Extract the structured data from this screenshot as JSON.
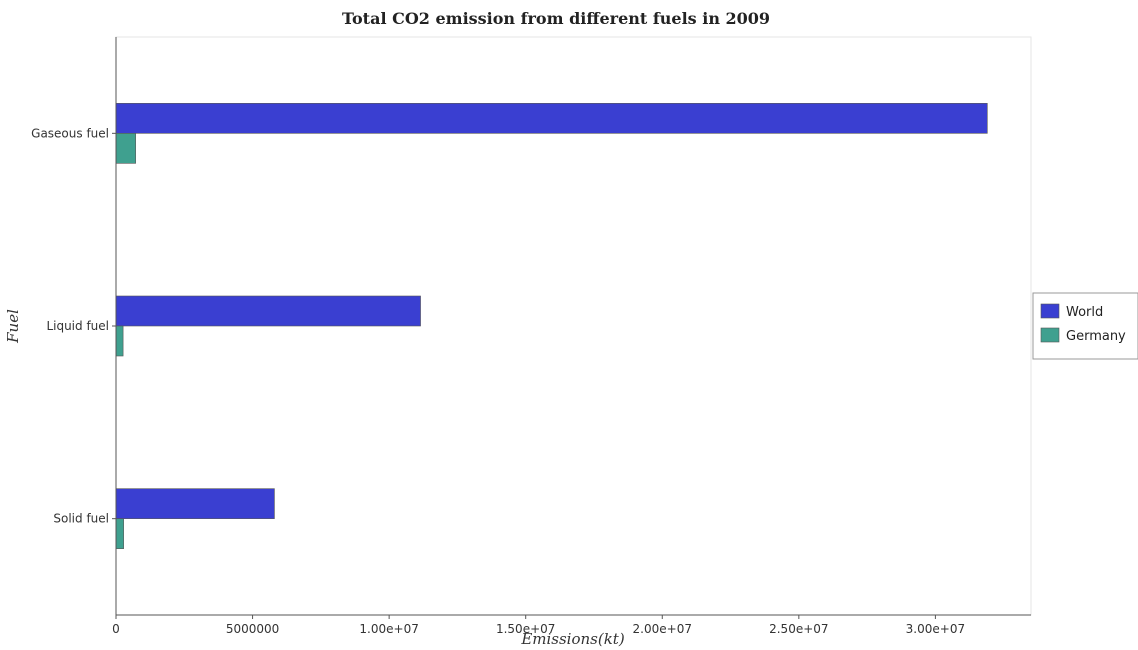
{
  "chart_data": {
    "type": "bar",
    "orientation": "horizontal",
    "title": "Total CO2 emission from different fuels in 2009",
    "xlabel": "Emissions(kt)",
    "ylabel": "Fuel",
    "categories": [
      "Gaseous fuel",
      "Liquid fuel",
      "Solid fuel"
    ],
    "series": [
      {
        "name": "World",
        "color": "#3a3fd1",
        "values": [
          31900000,
          11150000,
          5800000
        ]
      },
      {
        "name": "Germany",
        "color": "#3fa08f",
        "values": [
          720000,
          260000,
          280000
        ]
      }
    ],
    "xlim": [
      0,
      33500000
    ],
    "xticks": [
      0,
      5000000,
      10000000,
      15000000,
      20000000,
      25000000,
      30000000
    ],
    "xtick_labels": [
      "0",
      "5000000",
      "1.00e+07",
      "1.50e+07",
      "2.00e+07",
      "2.50e+07",
      "3.00e+07"
    ],
    "legend_position": "right",
    "grid": false
  }
}
